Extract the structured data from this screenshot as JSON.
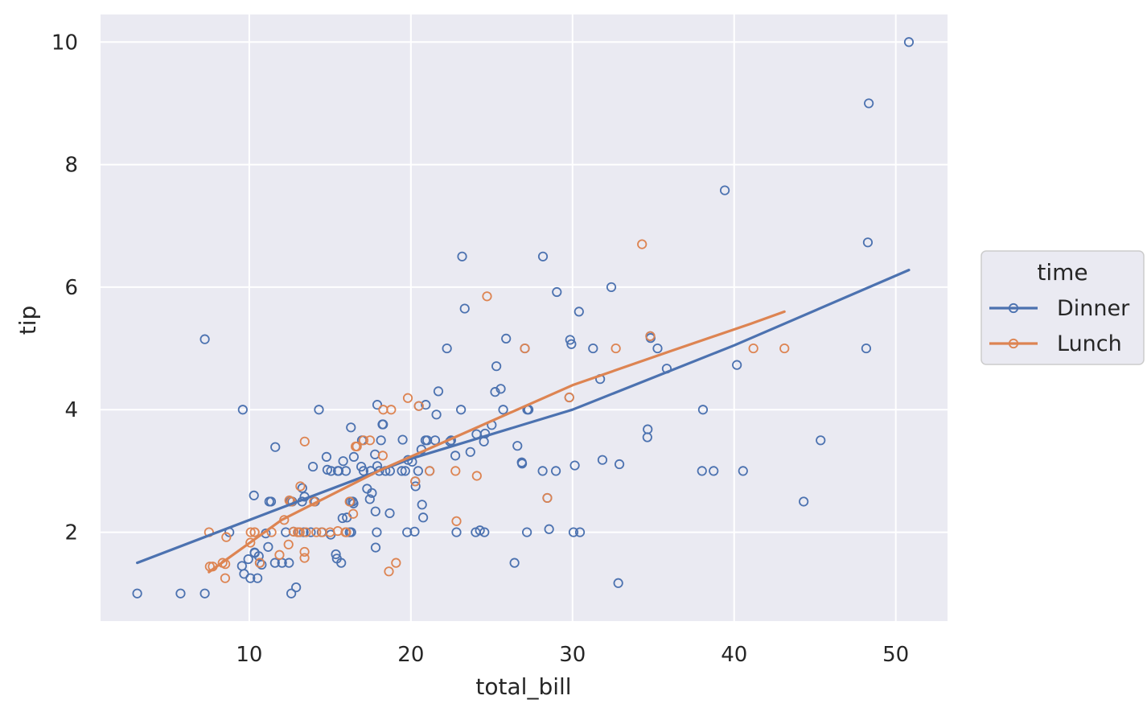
{
  "chart_data": {
    "type": "scatter",
    "xlabel": "total_bill",
    "ylabel": "tip",
    "xlim": [
      0.8,
      53.2
    ],
    "ylim": [
      0.55,
      10.45
    ],
    "xticks": [
      10,
      20,
      30,
      40,
      50
    ],
    "yticks": [
      2,
      4,
      6,
      8,
      10
    ],
    "grid": true,
    "legend": {
      "title": "time",
      "placement": "right"
    },
    "series": [
      {
        "name": "Dinner",
        "color": "#4c72b0",
        "points": [
          [
            3.07,
            1.0
          ],
          [
            5.75,
            1.0
          ],
          [
            7.25,
            1.0
          ],
          [
            7.25,
            5.15
          ],
          [
            9.6,
            4.0
          ],
          [
            8.77,
            2.0
          ],
          [
            9.55,
            1.45
          ],
          [
            9.68,
            1.32
          ],
          [
            9.94,
            1.56
          ],
          [
            10.07,
            1.25
          ],
          [
            10.29,
            2.6
          ],
          [
            10.33,
            1.67
          ],
          [
            10.34,
            1.66
          ],
          [
            10.51,
            1.25
          ],
          [
            10.59,
            1.61
          ],
          [
            10.65,
            1.5
          ],
          [
            10.77,
            1.47
          ],
          [
            11.02,
            1.98
          ],
          [
            11.17,
            1.76
          ],
          [
            11.24,
            2.5
          ],
          [
            11.35,
            2.5
          ],
          [
            11.59,
            1.5
          ],
          [
            11.61,
            3.39
          ],
          [
            12.03,
            1.5
          ],
          [
            12.26,
            2.0
          ],
          [
            12.46,
            1.5
          ],
          [
            12.54,
            2.5
          ],
          [
            12.6,
            1.0
          ],
          [
            12.66,
            2.5
          ],
          [
            12.74,
            2.01
          ],
          [
            12.9,
            1.1
          ],
          [
            13.03,
            2.0
          ],
          [
            13.27,
            2.5
          ],
          [
            13.28,
            2.72
          ],
          [
            13.37,
            2.0
          ],
          [
            13.42,
            2.58
          ],
          [
            13.81,
            2.0
          ],
          [
            13.94,
            3.07
          ],
          [
            14.07,
            2.5
          ],
          [
            14.31,
            4.0
          ],
          [
            14.48,
            2.0
          ],
          [
            14.78,
            3.23
          ],
          [
            14.83,
            3.02
          ],
          [
            15.04,
            1.96
          ],
          [
            15.06,
            3.0
          ],
          [
            15.36,
            1.64
          ],
          [
            15.42,
            1.57
          ],
          [
            15.48,
            3.0
          ],
          [
            15.53,
            3.0
          ],
          [
            15.69,
            1.5
          ],
          [
            15.77,
            2.23
          ],
          [
            15.81,
            3.16
          ],
          [
            15.98,
            3.0
          ],
          [
            16.0,
            2.0
          ],
          [
            16.04,
            2.24
          ],
          [
            16.21,
            2.0
          ],
          [
            16.27,
            2.5
          ],
          [
            16.29,
            3.71
          ],
          [
            16.31,
            2.0
          ],
          [
            16.4,
            2.5
          ],
          [
            16.45,
            2.47
          ],
          [
            16.47,
            3.23
          ],
          [
            16.93,
            3.07
          ],
          [
            16.97,
            3.5
          ],
          [
            17.07,
            3.0
          ],
          [
            17.29,
            2.71
          ],
          [
            17.46,
            2.54
          ],
          [
            17.51,
            3.0
          ],
          [
            17.59,
            2.64
          ],
          [
            17.78,
            3.27
          ],
          [
            17.81,
            2.34
          ],
          [
            17.82,
            1.75
          ],
          [
            17.89,
            2.0
          ],
          [
            17.92,
            4.08
          ],
          [
            17.92,
            3.08
          ],
          [
            18.04,
            3.0
          ],
          [
            18.15,
            3.5
          ],
          [
            18.24,
            3.76
          ],
          [
            18.28,
            3.76
          ],
          [
            18.43,
            3.0
          ],
          [
            18.69,
            2.31
          ],
          [
            18.71,
            3.0
          ],
          [
            19.44,
            3.0
          ],
          [
            19.49,
            3.51
          ],
          [
            19.65,
            3.0
          ],
          [
            19.77,
            2.0
          ],
          [
            19.82,
            3.18
          ],
          [
            20.08,
            3.15
          ],
          [
            20.23,
            2.01
          ],
          [
            20.27,
            2.83
          ],
          [
            20.29,
            2.75
          ],
          [
            20.45,
            3.0
          ],
          [
            20.49,
            4.06
          ],
          [
            20.65,
            3.35
          ],
          [
            20.69,
            2.45
          ],
          [
            20.76,
            2.24
          ],
          [
            20.9,
            3.5
          ],
          [
            20.92,
            4.08
          ],
          [
            21.01,
            3.5
          ],
          [
            21.16,
            3.0
          ],
          [
            21.5,
            3.5
          ],
          [
            21.58,
            3.92
          ],
          [
            21.7,
            4.3
          ],
          [
            22.23,
            5.0
          ],
          [
            22.42,
            3.48
          ],
          [
            22.49,
            3.5
          ],
          [
            22.75,
            3.25
          ],
          [
            22.82,
            2.0
          ],
          [
            23.1,
            4.0
          ],
          [
            23.17,
            6.5
          ],
          [
            23.33,
            5.65
          ],
          [
            23.68,
            3.31
          ],
          [
            24.01,
            2.0
          ],
          [
            24.06,
            3.6
          ],
          [
            24.27,
            2.03
          ],
          [
            24.52,
            3.48
          ],
          [
            24.55,
            2.0
          ],
          [
            24.59,
            3.61
          ],
          [
            25.0,
            3.75
          ],
          [
            25.21,
            4.29
          ],
          [
            25.29,
            4.71
          ],
          [
            25.56,
            4.34
          ],
          [
            25.71,
            4.0
          ],
          [
            25.89,
            5.16
          ],
          [
            26.41,
            1.5
          ],
          [
            26.59,
            3.41
          ],
          [
            26.86,
            3.14
          ],
          [
            26.88,
            3.12
          ],
          [
            27.05,
            5.0
          ],
          [
            27.18,
            2.0
          ],
          [
            27.2,
            4.0
          ],
          [
            27.28,
            4.0
          ],
          [
            28.15,
            3.0
          ],
          [
            28.17,
            6.5
          ],
          [
            28.44,
            2.56
          ],
          [
            28.55,
            2.05
          ],
          [
            28.97,
            3.0
          ],
          [
            29.03,
            5.92
          ],
          [
            29.8,
            4.2
          ],
          [
            29.85,
            5.14
          ],
          [
            29.93,
            5.07
          ],
          [
            30.06,
            2.0
          ],
          [
            30.14,
            3.09
          ],
          [
            30.4,
            5.6
          ],
          [
            30.46,
            2.0
          ],
          [
            31.27,
            5.0
          ],
          [
            31.71,
            4.5
          ],
          [
            31.85,
            3.18
          ],
          [
            32.4,
            6.0
          ],
          [
            32.83,
            1.17
          ],
          [
            32.9,
            3.11
          ],
          [
            34.63,
            3.55
          ],
          [
            34.65,
            3.68
          ],
          [
            34.81,
            5.2
          ],
          [
            34.83,
            5.17
          ],
          [
            35.26,
            5.0
          ],
          [
            35.83,
            4.67
          ],
          [
            38.01,
            3.0
          ],
          [
            38.07,
            4.0
          ],
          [
            38.73,
            3.0
          ],
          [
            39.42,
            7.58
          ],
          [
            40.17,
            4.73
          ],
          [
            40.55,
            3.0
          ],
          [
            44.3,
            2.5
          ],
          [
            45.35,
            3.5
          ],
          [
            48.17,
            5.0
          ],
          [
            48.27,
            6.73
          ],
          [
            48.33,
            9.0
          ],
          [
            50.81,
            10.0
          ]
        ],
        "fit": [
          [
            3.07,
            1.5
          ],
          [
            11.0,
            2.3
          ],
          [
            20.0,
            3.2
          ],
          [
            30.0,
            4.0
          ],
          [
            40.0,
            5.05
          ],
          [
            50.81,
            6.28
          ]
        ]
      },
      {
        "name": "Lunch",
        "color": "#dd8452",
        "points": [
          [
            7.51,
            2.0
          ],
          [
            7.56,
            1.44
          ],
          [
            7.74,
            1.44
          ],
          [
            8.35,
            1.5
          ],
          [
            8.51,
            1.25
          ],
          [
            8.52,
            1.48
          ],
          [
            8.58,
            1.92
          ],
          [
            10.07,
            1.83
          ],
          [
            10.09,
            2.0
          ],
          [
            10.33,
            2.0
          ],
          [
            10.34,
            2.0
          ],
          [
            10.65,
            1.5
          ],
          [
            11.87,
            1.63
          ],
          [
            12.16,
            2.2
          ],
          [
            12.43,
            1.8
          ],
          [
            12.48,
            2.52
          ],
          [
            12.74,
            2.01
          ],
          [
            13.0,
            2.0
          ],
          [
            13.13,
            2.0
          ],
          [
            13.16,
            2.75
          ],
          [
            13.42,
            1.58
          ],
          [
            13.42,
            1.68
          ],
          [
            13.43,
            3.48
          ],
          [
            13.51,
            2.0
          ],
          [
            14.15,
            2.0
          ],
          [
            14.52,
            2.0
          ],
          [
            15.48,
            2.02
          ],
          [
            15.95,
            2.0
          ],
          [
            16.0,
            2.0
          ],
          [
            16.43,
            2.3
          ],
          [
            16.58,
            3.4
          ],
          [
            16.66,
            3.4
          ],
          [
            17.47,
            3.5
          ],
          [
            18.26,
            3.25
          ],
          [
            18.29,
            4.0
          ],
          [
            18.64,
            1.36
          ],
          [
            18.78,
            4.0
          ],
          [
            19.08,
            1.5
          ],
          [
            19.81,
            4.19
          ],
          [
            20.27,
            2.83
          ],
          [
            20.49,
            4.06
          ],
          [
            21.16,
            3.0
          ],
          [
            22.76,
            3.0
          ],
          [
            22.82,
            2.18
          ],
          [
            24.08,
            2.92
          ],
          [
            24.71,
            5.85
          ],
          [
            27.05,
            5.0
          ],
          [
            28.44,
            2.56
          ],
          [
            29.8,
            4.2
          ],
          [
            32.68,
            5.0
          ],
          [
            34.3,
            6.7
          ],
          [
            34.81,
            5.2
          ],
          [
            41.19,
            5.0
          ],
          [
            43.11,
            5.0
          ],
          [
            11.38,
            2.0
          ],
          [
            14.0,
            2.5
          ],
          [
            16.21,
            2.5
          ],
          [
            17.07,
            3.5
          ],
          [
            15.0,
            2.0
          ],
          [
            12.6,
            2.5
          ]
        ],
        "fit": [
          [
            7.51,
            1.35
          ],
          [
            12.0,
            2.2
          ],
          [
            18.0,
            3.0
          ],
          [
            24.0,
            3.7
          ],
          [
            30.0,
            4.4
          ],
          [
            36.0,
            4.95
          ],
          [
            41.0,
            5.4
          ],
          [
            43.11,
            5.6
          ]
        ]
      }
    ]
  }
}
